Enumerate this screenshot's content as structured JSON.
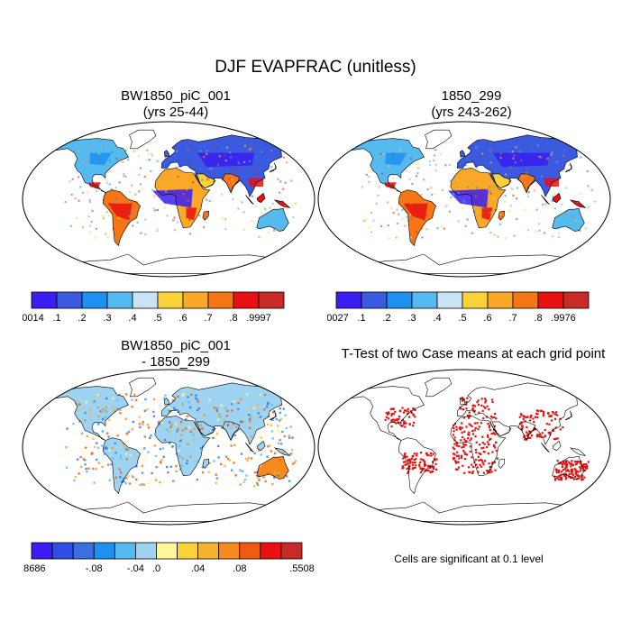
{
  "figure": {
    "title": "DJF EVAPFRAC (unitless)"
  },
  "panels": [
    {
      "id": "case",
      "title_line1": "BW1850_piC_001",
      "title_line2": "(yrs 25-44)"
    },
    {
      "id": "control",
      "title_line1": "1850_299",
      "title_line2": "(yrs 243-262)"
    },
    {
      "id": "diff",
      "title_line1": "BW1850_piC_001",
      "title_line2": "- 1850_299"
    },
    {
      "id": "ttest",
      "title_line1": "T-Test of two Case means at each grid point",
      "title_line2": ""
    }
  ],
  "colorbars": {
    "case": {
      "colors": [
        "#3a1df0",
        "#3b5ae0",
        "#1e90f0",
        "#55baf0",
        "#c8e4f4",
        "#f9d23a",
        "#f9a828",
        "#f67615",
        "#e81010",
        "#c82a28"
      ],
      "labels": [
        ".0014",
        ".1",
        ".2",
        ".3",
        ".4",
        ".5",
        ".6",
        ".7",
        ".8",
        ".9997"
      ]
    },
    "control": {
      "colors": [
        "#3a1df0",
        "#3b5ae0",
        "#1e90f0",
        "#55baf0",
        "#c8e4f4",
        "#f9d23a",
        "#f9a828",
        "#f67615",
        "#e81010",
        "#c82a28"
      ],
      "labels": [
        ".0027",
        ".1",
        ".2",
        ".3",
        ".4",
        ".5",
        ".6",
        ".7",
        ".8",
        ".9976"
      ]
    },
    "diff": {
      "colors": [
        "#3a1df0",
        "#2f4ee8",
        "#3b6fe0",
        "#1e90f0",
        "#55baf0",
        "#9ed4f2",
        "#fff79a",
        "#f9d23a",
        "#f9b22e",
        "#f68a1c",
        "#f25a12",
        "#e81010",
        "#c82a28"
      ],
      "labels": [
        "-.8686",
        "-.08",
        "-.04",
        ".0",
        ".04",
        ".08",
        ".5508"
      ]
    }
  },
  "significance_note": "Cells are significant at 0.1 level"
}
